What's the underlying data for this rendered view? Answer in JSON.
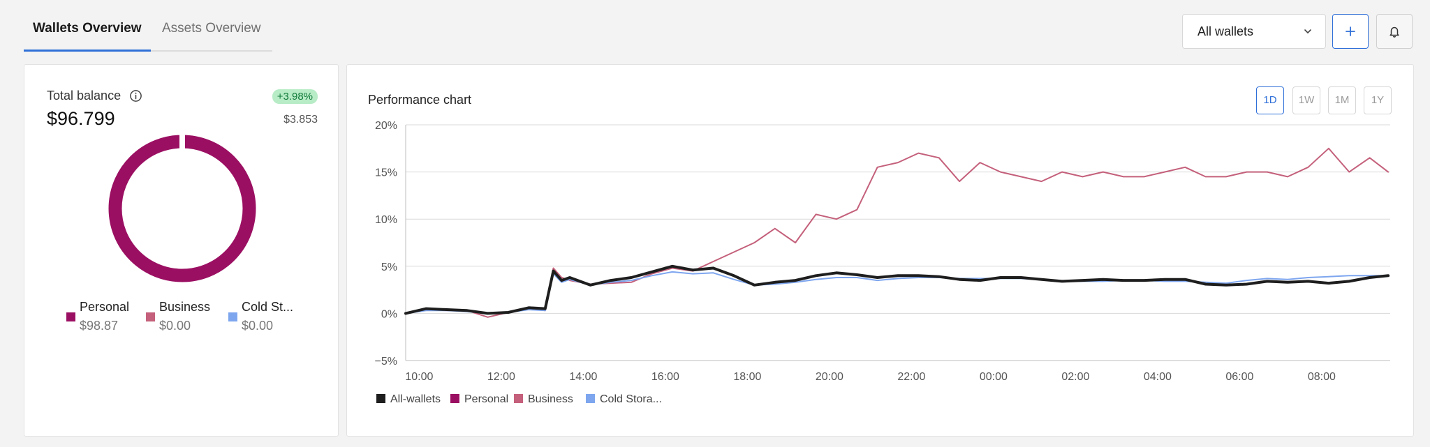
{
  "tabs": [
    {
      "label": "Wallets Overview",
      "active": true
    },
    {
      "label": "Assets Overview",
      "active": false
    }
  ],
  "wallet_select": {
    "value": "All wallets"
  },
  "icons": {
    "add": "plus-icon",
    "notifications": "bell-icon",
    "select": "chevron-down-icon",
    "info": "info-icon"
  },
  "colors": {
    "accent": "#2f6fd8",
    "personal": "#9b0f62",
    "business": "#c4607b",
    "cold_storage": "#7ea6ef",
    "all_wallets": "#1e1e1e",
    "positive": "#127a3a"
  },
  "balance": {
    "label": "Total balance",
    "amount": "$96.799",
    "change_pct": "+3.98%",
    "change_amount": "$3.853"
  },
  "wallets": [
    {
      "name": "Personal",
      "value": "$98.87",
      "color": "#9b0f62",
      "share": 1.0
    },
    {
      "name": "Business",
      "value": "$0.00",
      "color": "#c4607b",
      "share": 0.0
    },
    {
      "name": "Cold St...",
      "value": "$0.00",
      "color": "#7ea6ef",
      "share": 0.0
    }
  ],
  "performance": {
    "title": "Performance chart",
    "ranges": [
      {
        "label": "1D",
        "active": true
      },
      {
        "label": "1W",
        "active": false
      },
      {
        "label": "1M",
        "active": false
      },
      {
        "label": "1Y",
        "active": false
      }
    ]
  },
  "chart_data": {
    "type": "line",
    "y_ticks": [
      "20%",
      "15%",
      "10%",
      "5%",
      "0%",
      "−5%"
    ],
    "ylim": [
      -5,
      20
    ],
    "x_ticks": [
      "10:00",
      "12:00",
      "14:00",
      "16:00",
      "18:00",
      "20:00",
      "22:00",
      "00:00",
      "02:00",
      "04:00",
      "06:00",
      "08:00"
    ],
    "x_hours": [
      0,
      0.5,
      1,
      1.5,
      2,
      2.5,
      3,
      3.4,
      3.6,
      3.8,
      4,
      4.5,
      5,
      5.5,
      6,
      6.5,
      7,
      7.5,
      8,
      8.5,
      9,
      9.5,
      10,
      10.5,
      11,
      11.5,
      12,
      12.5,
      13,
      13.5,
      14,
      14.5,
      15,
      15.5,
      16,
      16.5,
      17,
      17.5,
      18,
      18.5,
      19,
      19.5,
      20,
      20.5,
      21,
      21.5,
      22,
      22.5,
      23,
      23.5,
      23.95
    ],
    "grid": true,
    "legend_position": "bottom-left",
    "series": [
      {
        "name": "All-wallets",
        "color": "#1e1e1e",
        "values": [
          0,
          0.5,
          0.4,
          0.3,
          0,
          0.1,
          0.6,
          0.5,
          4.5,
          3.5,
          3.8,
          3.0,
          3.5,
          3.8,
          4.4,
          5.0,
          4.6,
          4.8,
          4.0,
          3.0,
          3.3,
          3.5,
          4.0,
          4.3,
          4.1,
          3.8,
          4.0,
          4.0,
          3.9,
          3.6,
          3.5,
          3.8,
          3.8,
          3.6,
          3.4,
          3.5,
          3.6,
          3.5,
          3.5,
          3.6,
          3.6,
          3.1,
          3.0,
          3.1,
          3.4,
          3.3,
          3.4,
          3.2,
          3.4,
          3.8,
          4.0
        ]
      },
      {
        "name": "Personal",
        "color": "#9b0f62",
        "values": []
      },
      {
        "name": "Business",
        "color": "#c4607b",
        "values": [
          0,
          0.4,
          0.3,
          0.3,
          -0.4,
          0.1,
          0.5,
          0.3,
          4.8,
          3.8,
          3.5,
          3.1,
          3.2,
          3.3,
          4.2,
          4.8,
          4.5,
          5.5,
          6.5,
          7.5,
          9.0,
          7.5,
          10.5,
          10.0,
          11.0,
          15.5,
          16.0,
          17.0,
          16.5,
          14.0,
          16.0,
          15.0,
          14.5,
          14.0,
          15.0,
          14.5,
          15.0,
          14.5,
          14.5,
          15.0,
          15.5,
          14.5,
          14.5,
          15.0,
          15.0,
          14.5,
          15.5,
          17.5,
          15.0,
          16.5,
          15.0
        ]
      },
      {
        "name": "Cold Stora...",
        "color": "#7ea6ef",
        "values": [
          0,
          0.3,
          0.3,
          0.2,
          0,
          0.1,
          0.4,
          0.3,
          4.2,
          3.3,
          3.6,
          3.0,
          3.3,
          3.5,
          4.0,
          4.4,
          4.2,
          4.3,
          3.6,
          3.0,
          3.1,
          3.3,
          3.6,
          3.8,
          3.8,
          3.5,
          3.7,
          3.8,
          3.8,
          3.7,
          3.7,
          3.7,
          3.7,
          3.6,
          3.4,
          3.4,
          3.4,
          3.5,
          3.5,
          3.4,
          3.4,
          3.3,
          3.2,
          3.5,
          3.7,
          3.6,
          3.8,
          3.9,
          4.0,
          4.0,
          4.0
        ]
      }
    ]
  }
}
